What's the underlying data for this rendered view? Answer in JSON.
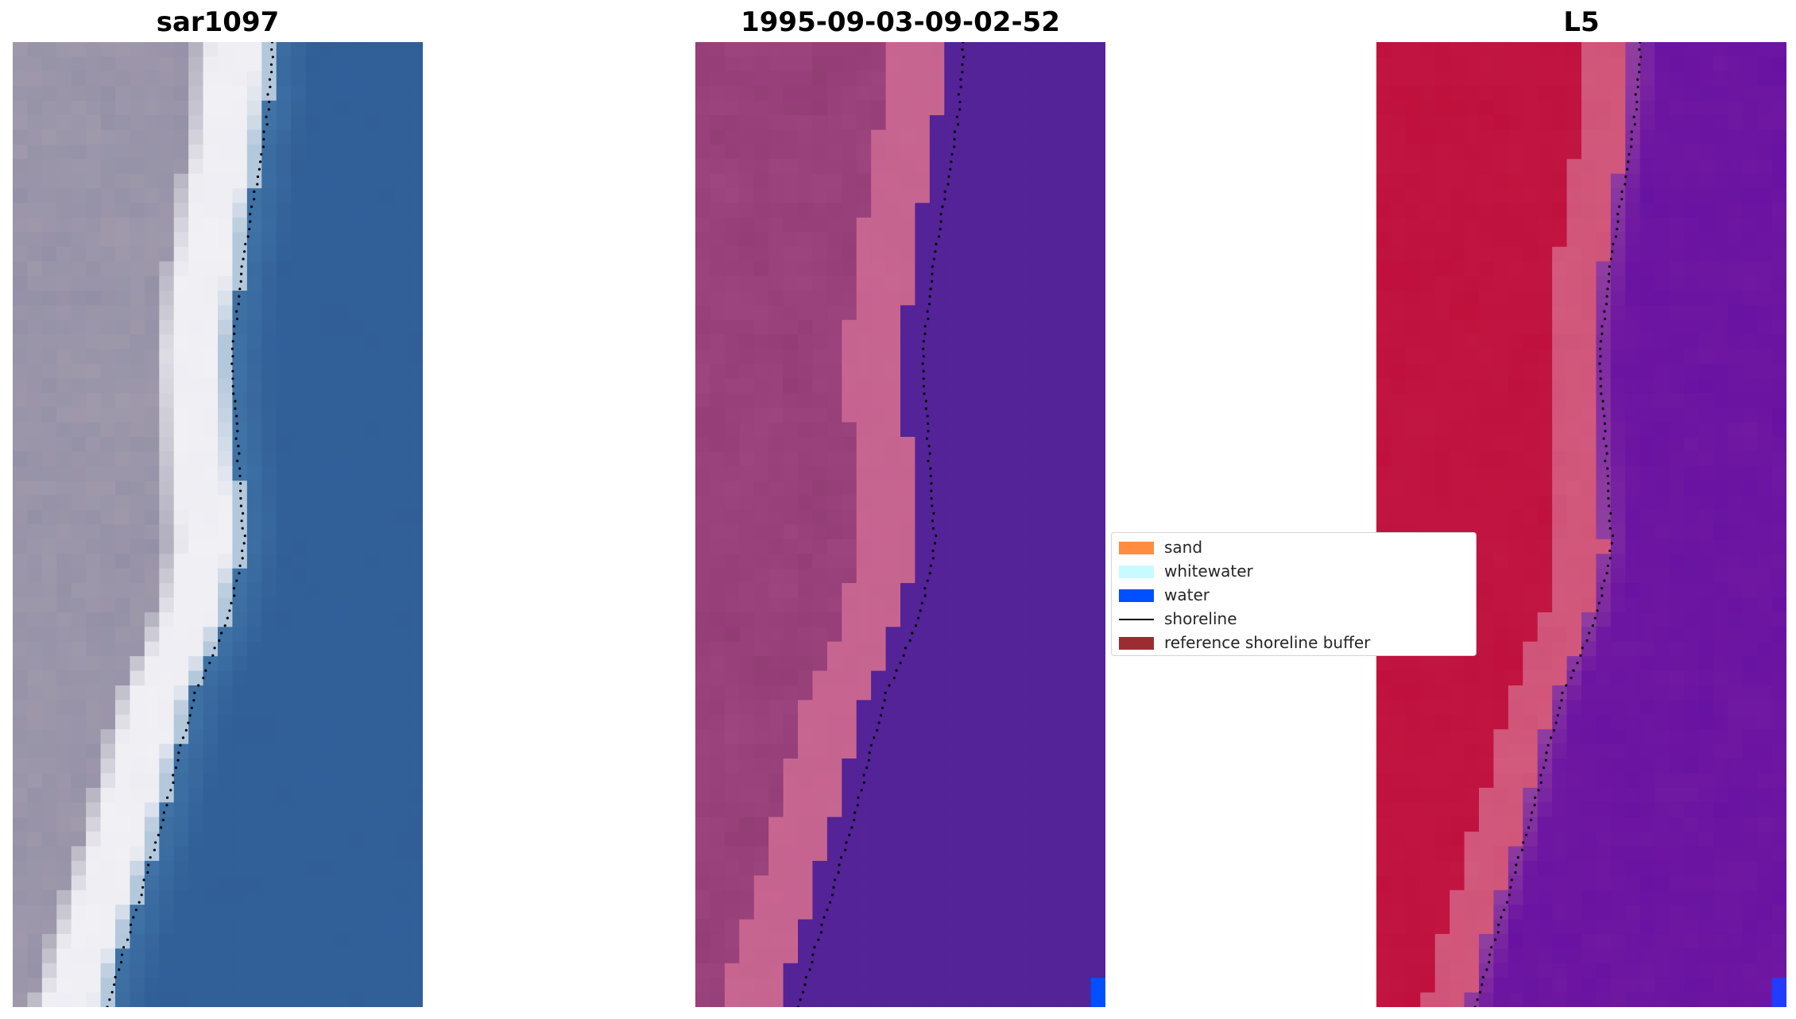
{
  "panels": [
    {
      "title": "sar1097"
    },
    {
      "title": "1995-09-03-09-02-52"
    },
    {
      "title": "L5"
    }
  ],
  "legend": {
    "items": [
      {
        "label": "sand",
        "color": "#ff8c3f",
        "icon": "patch"
      },
      {
        "label": "whitewater",
        "color": "#c8fbff",
        "icon": "patch"
      },
      {
        "label": "water",
        "color": "#0050ff",
        "icon": "patch"
      },
      {
        "label": "shoreline",
        "color": "#000000",
        "icon": "line"
      },
      {
        "label": "reference shoreline buffer",
        "color": "#9b2d32",
        "icon": "patch"
      }
    ]
  },
  "colors": {
    "rgb_sand": "#9e9aab",
    "rgb_whitewater": "#f2f2f6",
    "rgb_water": "#31609a",
    "class_land": "#a04882",
    "class_beach": "#c5628f",
    "class_water": "#532397",
    "class_water_pixel": "#0050ff",
    "index_land": "#bf0f3c",
    "index_transition": "#cf5076",
    "index_water": "#721aa0",
    "shoreline": "#000000"
  }
}
